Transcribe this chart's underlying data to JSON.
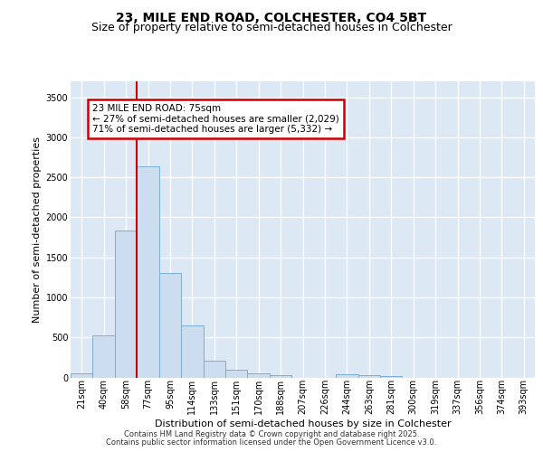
{
  "title1": "23, MILE END ROAD, COLCHESTER, CO4 5BT",
  "title2": "Size of property relative to semi-detached houses in Colchester",
  "xlabel": "Distribution of semi-detached houses by size in Colchester",
  "ylabel": "Number of semi-detached properties",
  "categories": [
    "21sqm",
    "40sqm",
    "58sqm",
    "77sqm",
    "95sqm",
    "114sqm",
    "133sqm",
    "151sqm",
    "170sqm",
    "188sqm",
    "207sqm",
    "226sqm",
    "244sqm",
    "263sqm",
    "281sqm",
    "300sqm",
    "319sqm",
    "337sqm",
    "356sqm",
    "374sqm",
    "393sqm"
  ],
  "values": [
    55,
    530,
    1840,
    2640,
    1310,
    645,
    210,
    95,
    55,
    30,
    0,
    0,
    40,
    25,
    15,
    0,
    0,
    0,
    0,
    0,
    0
  ],
  "bar_color": "#ccddf0",
  "bar_edge_color": "#7aafd4",
  "vline_pos": 2.5,
  "vline_color": "#cc0000",
  "annotation_text": "23 MILE END ROAD: 75sqm\n← 27% of semi-detached houses are smaller (2,029)\n71% of semi-detached houses are larger (5,332) →",
  "annotation_box_color": "white",
  "annotation_edge_color": "#cc0000",
  "ylim": [
    0,
    3700
  ],
  "yticks": [
    0,
    500,
    1000,
    1500,
    2000,
    2500,
    3000,
    3500
  ],
  "plot_bg_color": "#dde8f5",
  "grid_color": "white",
  "footer1": "Contains HM Land Registry data © Crown copyright and database right 2025.",
  "footer2": "Contains public sector information licensed under the Open Government Licence v3.0.",
  "title_fontsize": 10,
  "subtitle_fontsize": 9,
  "tick_fontsize": 7,
  "ylabel_fontsize": 8,
  "xlabel_fontsize": 8,
  "footer_fontsize": 6,
  "annotation_fontsize": 7.5
}
